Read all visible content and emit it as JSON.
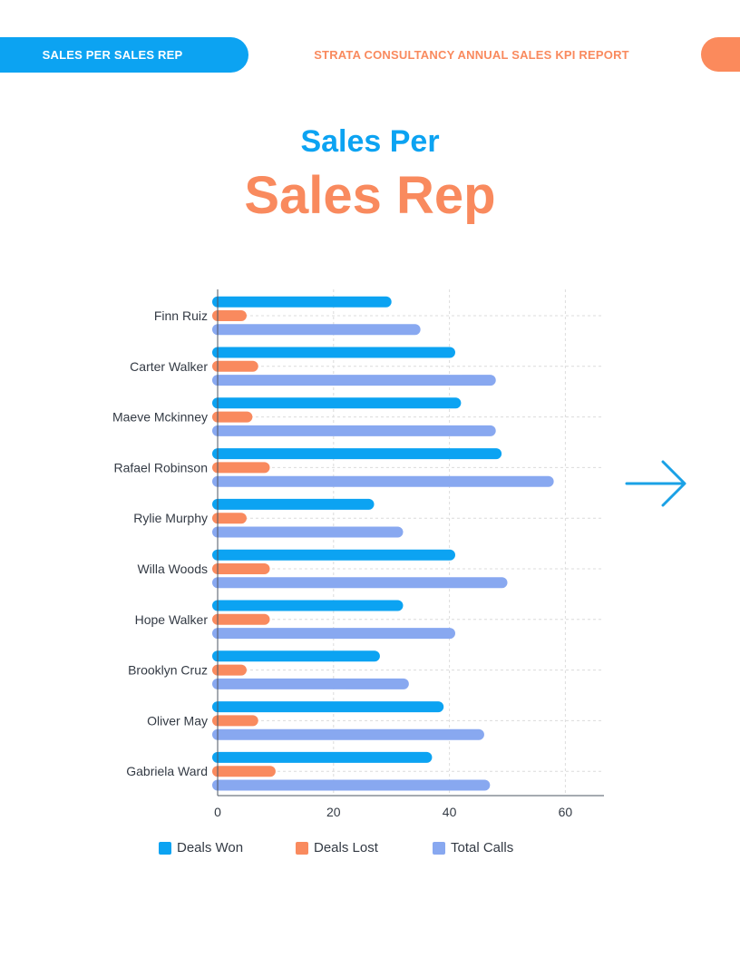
{
  "header": {
    "section_tab": "SALES PER SALES REP",
    "report_title": "STRATA CONSULTANCY ANNUAL SALES KPI REPORT"
  },
  "title": {
    "line1": "Sales Per",
    "line2": "Sales Rep"
  },
  "icons": {
    "next": "arrow-right-icon"
  },
  "colors": {
    "blue": "#0ca3f2",
    "orange": "#f98a5e",
    "periwinkle": "#88a8f0",
    "text": "#333a44",
    "grid": "#dcdcdc"
  },
  "chart_data": {
    "type": "bar",
    "orientation": "horizontal",
    "categories": [
      "Finn Ruiz",
      "Carter Walker",
      "Maeve Mckinney",
      "Rafael Robinson",
      "Rylie Murphy",
      "Willa Woods",
      "Hope Walker",
      "Brooklyn Cruz",
      "Oliver May",
      "Gabriela Ward"
    ],
    "series": [
      {
        "name": "Deals Won",
        "color": "#0ca3f2",
        "values": [
          30,
          41,
          42,
          49,
          27,
          41,
          32,
          28,
          39,
          37
        ]
      },
      {
        "name": "Deals Lost",
        "color": "#f98a5e",
        "values": [
          5,
          7,
          6,
          9,
          5,
          9,
          9,
          5,
          7,
          10
        ]
      },
      {
        "name": "Total Calls",
        "color": "#88a8f0",
        "values": [
          35,
          48,
          48,
          58,
          32,
          50,
          41,
          33,
          46,
          47
        ]
      }
    ],
    "xlim": [
      0,
      67
    ],
    "xticks": [
      0,
      20,
      40,
      60
    ],
    "grid": true,
    "legend": "bottom"
  }
}
